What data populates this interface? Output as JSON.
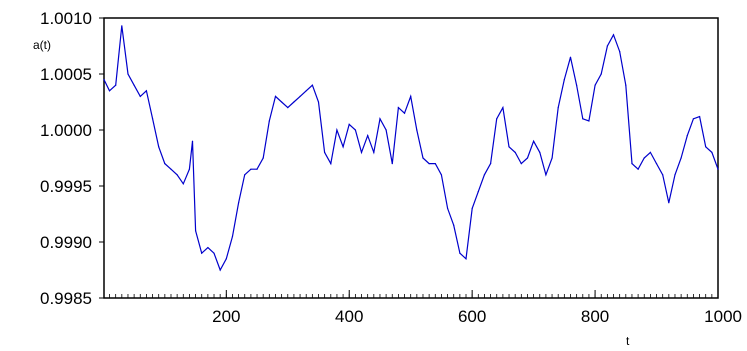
{
  "chart_data": {
    "type": "line",
    "title": "",
    "ylabel": "a(t)",
    "xlabel": "t",
    "xlim": [
      1,
      1000
    ],
    "ylim": [
      0.9985,
      1.001
    ],
    "x_ticks": [
      200,
      400,
      600,
      800,
      1000
    ],
    "x_tick_labels": [
      "200",
      "400",
      "600",
      "800",
      "1000"
    ],
    "y_ticks": [
      0.9985,
      0.999,
      0.9995,
      1.0,
      1.0005,
      1.001
    ],
    "y_tick_labels": [
      "0.9985",
      "0.9990",
      "0.9995",
      "1.0000",
      "1.0005",
      "1.0010"
    ],
    "grid": false,
    "line_color": "#0000cc",
    "series": [
      {
        "x": [
          1,
          10,
          20,
          30,
          40,
          50,
          60,
          70,
          80,
          90,
          100,
          110,
          120,
          130,
          140,
          145,
          150,
          160,
          170,
          180,
          190,
          200,
          210,
          220,
          230,
          240,
          250,
          260,
          270,
          280,
          290,
          300,
          310,
          320,
          330,
          340,
          350,
          360,
          370,
          380,
          390,
          400,
          410,
          420,
          430,
          440,
          450,
          460,
          470,
          480,
          490,
          500,
          510,
          520,
          530,
          540,
          550,
          560,
          570,
          580,
          590,
          600,
          610,
          620,
          630,
          640,
          650,
          660,
          670,
          680,
          690,
          700,
          710,
          720,
          730,
          740,
          750,
          760,
          770,
          780,
          790,
          800,
          810,
          820,
          830,
          840,
          850,
          860,
          870,
          880,
          890,
          900,
          910,
          920,
          930,
          940,
          950,
          960,
          970,
          980,
          990,
          1000
        ],
        "values": [
          1.00045,
          1.00035,
          1.0004,
          1.00093,
          1.0005,
          1.0004,
          1.0003,
          1.00035,
          1.0001,
          0.99985,
          0.9997,
          0.99965,
          0.9996,
          0.99952,
          0.99965,
          0.9999,
          0.9991,
          0.9989,
          0.99895,
          0.9989,
          0.99875,
          0.99885,
          0.99905,
          0.99935,
          0.9996,
          0.99965,
          0.99965,
          0.99975,
          1.00008,
          1.0003,
          1.00025,
          1.0002,
          1.00025,
          1.0003,
          1.00035,
          1.0004,
          1.00025,
          0.9998,
          0.9997,
          1.0,
          0.99985,
          1.00005,
          1.0,
          0.9998,
          0.99995,
          0.9998,
          1.0001,
          1.0,
          0.9997,
          1.0002,
          1.00015,
          1.0003,
          1.0,
          0.99975,
          0.9997,
          0.9997,
          0.9996,
          0.9993,
          0.99915,
          0.9989,
          0.99885,
          0.9993,
          0.99945,
          0.9996,
          0.9997,
          1.0001,
          1.0002,
          0.99985,
          0.9998,
          0.9997,
          0.99975,
          0.9999,
          0.9998,
          0.9996,
          0.99975,
          1.0002,
          1.00045,
          1.00065,
          1.0004,
          1.0001,
          1.00008,
          1.0004,
          1.0005,
          1.00075,
          1.00085,
          1.0007,
          1.0004,
          0.9997,
          0.99965,
          0.99975,
          0.9998,
          0.9997,
          0.9996,
          0.99935,
          0.9996,
          0.99975,
          0.99995,
          1.0001,
          1.00012,
          0.99985,
          0.9998,
          0.99965
        ]
      }
    ]
  }
}
